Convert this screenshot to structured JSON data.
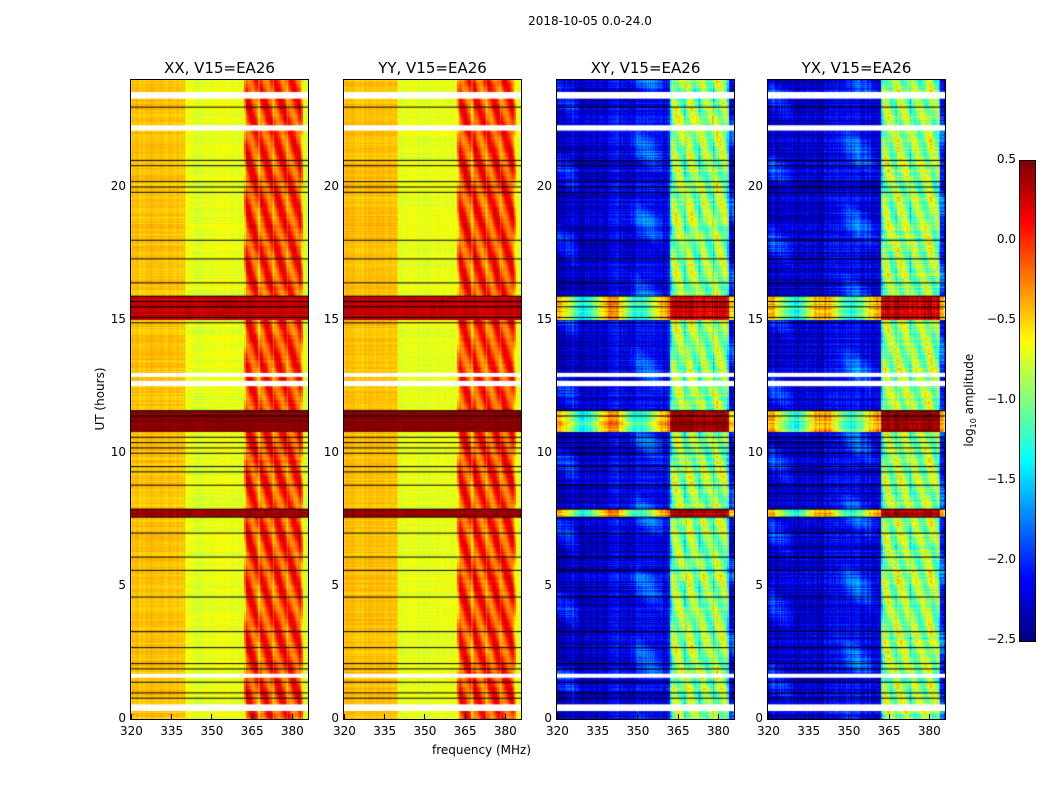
{
  "chart_data": {
    "type": "heatmap",
    "title": "2018-10-05 0.0-24.0",
    "xlabel": "frequency (MHz)",
    "ylabel": "UT (hours)",
    "xlim": [
      320,
      386
    ],
    "ylim": [
      0,
      24
    ],
    "xticks": [
      320,
      335,
      350,
      365,
      380
    ],
    "yticks": [
      0,
      5,
      10,
      15,
      20
    ],
    "colorbar": {
      "label_prefix": "log",
      "label_sub": "10",
      "label_suffix": " amplitude",
      "range": [
        -2.5,
        0.5
      ],
      "ticks": [
        "0.5",
        "0.0",
        "−0.5",
        "−1.0",
        "−1.5",
        "−2.0",
        "−2.5"
      ],
      "colormap": "jet"
    },
    "flagged_white_hours": [
      [
        0.3,
        0.55
      ],
      [
        1.55,
        1.7
      ],
      [
        12.5,
        12.7
      ],
      [
        12.85,
        13.0
      ],
      [
        22.1,
        22.3
      ],
      [
        23.3,
        23.55
      ]
    ],
    "flagged_black_hours": [
      0.8,
      1.0,
      1.4,
      1.9,
      2.1,
      2.7,
      3.3,
      4.6,
      5.6,
      6.1,
      7.0,
      7.6,
      7.9,
      8.8,
      9.3,
      9.5,
      10.0,
      10.2,
      10.4,
      10.6,
      11.4,
      11.6,
      14.9,
      15.1,
      15.5,
      15.7,
      15.9,
      16.4,
      17.3,
      18.0,
      19.8,
      20.0,
      20.2,
      20.8,
      21.0,
      23.0
    ],
    "panels": [
      {
        "title": "XX, V15=EA26",
        "base_low": -0.45,
        "base_mid": -0.7,
        "band": [
          362,
          384
        ],
        "band_level": -0.05,
        "rfi_rows": [
          {
            "hours": [
              10.8,
              11.6
            ],
            "value": 0.5
          },
          {
            "hours": [
              15.0,
              15.9
            ],
            "value": 0.3
          },
          {
            "hours": [
              7.6,
              7.9
            ],
            "value": 0.4
          }
        ],
        "noise": 0.12
      },
      {
        "title": "YY, V15=EA26",
        "base_low": -0.45,
        "base_mid": -0.7,
        "band": [
          362,
          384
        ],
        "band_level": -0.05,
        "rfi_rows": [
          {
            "hours": [
              10.8,
              11.6
            ],
            "value": 0.5
          },
          {
            "hours": [
              15.0,
              15.9
            ],
            "value": 0.3
          },
          {
            "hours": [
              7.6,
              7.9
            ],
            "value": 0.4
          }
        ],
        "noise": 0.12
      },
      {
        "title": "XY, V15=EA26",
        "base_low": -2.3,
        "base_mid": -2.2,
        "band": [
          362,
          384
        ],
        "band_level": -0.9,
        "rfi_rows": [
          {
            "hours": [
              10.8,
              11.6
            ],
            "value": 0.5
          },
          {
            "hours": [
              15.0,
              15.9
            ],
            "value": 0.3
          },
          {
            "hours": [
              7.6,
              7.9
            ],
            "value": 0.4
          }
        ],
        "noise": 0.35
      },
      {
        "title": "YX, V15=EA26",
        "base_low": -2.3,
        "base_mid": -2.2,
        "band": [
          362,
          384
        ],
        "band_level": -0.9,
        "rfi_rows": [
          {
            "hours": [
              10.8,
              11.6
            ],
            "value": 0.5
          },
          {
            "hours": [
              15.0,
              15.9
            ],
            "value": 0.3
          },
          {
            "hours": [
              7.6,
              7.9
            ],
            "value": 0.4
          }
        ],
        "noise": 0.35
      }
    ]
  }
}
